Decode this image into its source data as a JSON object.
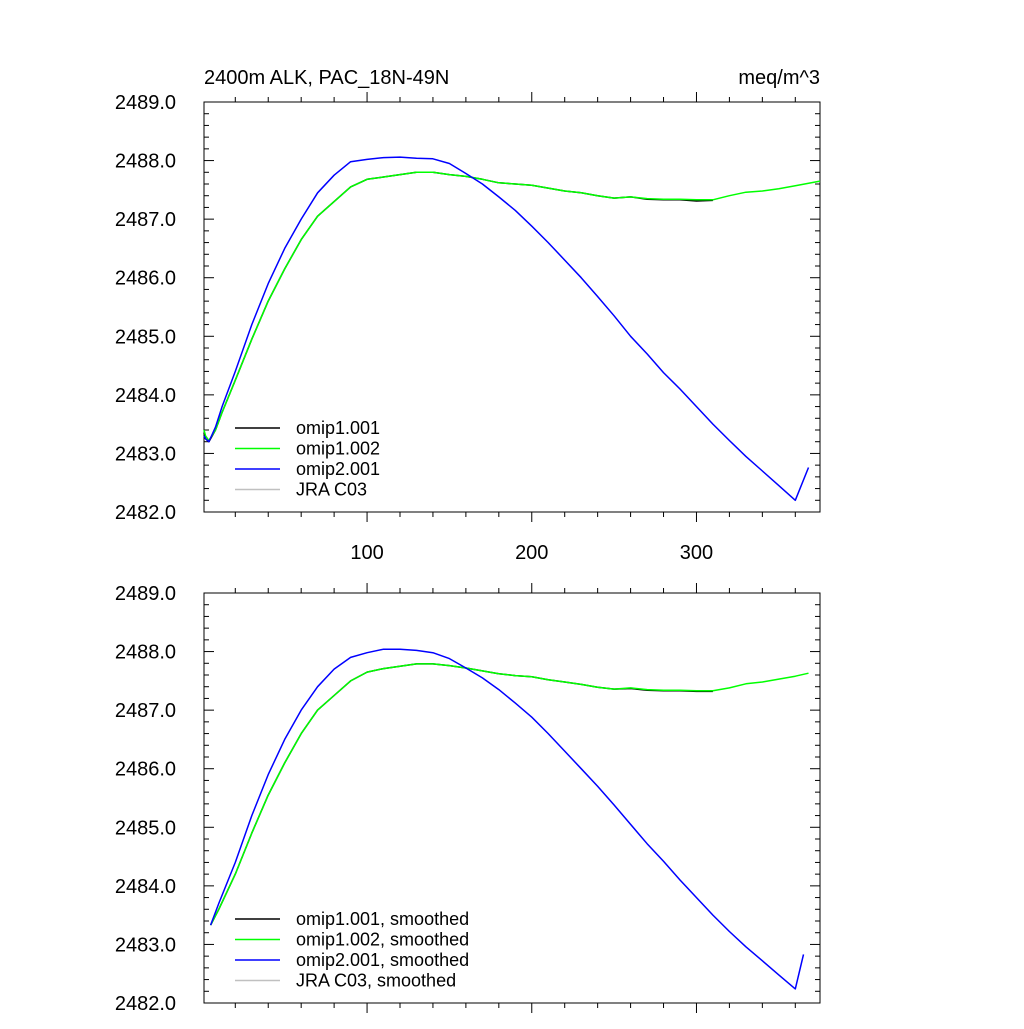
{
  "chart_data": [
    {
      "type": "line",
      "title": "2400m ALK, PAC_18N-49N",
      "units": "meq/m^3",
      "xlim": [
        1,
        375
      ],
      "ylim": [
        2482.0,
        2489.0
      ],
      "xticks": [
        100,
        200,
        300
      ],
      "xtick_labels": [
        "100",
        "200",
        "300"
      ],
      "yticks": [
        2482.0,
        2483.0,
        2484.0,
        2485.0,
        2486.0,
        2487.0,
        2488.0,
        2489.0
      ],
      "ytick_labels": [
        "2482.0",
        "2483.0",
        "2484.0",
        "2485.0",
        "2486.0",
        "2487.0",
        "2488.0",
        "2489.0"
      ],
      "legend_position": "bottom-left",
      "series": [
        {
          "name": "omip1.001",
          "color": "#000000",
          "x": [
            1,
            2,
            4,
            8,
            12,
            20,
            30,
            40,
            50,
            60,
            70,
            80,
            90,
            100,
            110,
            120,
            130,
            140,
            150,
            160,
            170,
            180,
            190,
            200,
            210,
            220,
            230,
            240,
            250,
            260,
            270,
            280,
            290,
            300,
            310
          ],
          "y": [
            2483.35,
            2483.25,
            2483.2,
            2483.4,
            2483.7,
            2484.25,
            2484.95,
            2485.6,
            2486.15,
            2486.65,
            2487.05,
            2487.3,
            2487.55,
            2487.68,
            2487.72,
            2487.76,
            2487.8,
            2487.8,
            2487.76,
            2487.73,
            2487.68,
            2487.62,
            2487.6,
            2487.58,
            2487.53,
            2487.48,
            2487.45,
            2487.4,
            2487.36,
            2487.38,
            2487.34,
            2487.33,
            2487.33,
            2487.31,
            2487.32
          ]
        },
        {
          "name": "omip1.002",
          "color": "#00ff00",
          "x": [
            1,
            2,
            4,
            8,
            12,
            20,
            30,
            40,
            50,
            60,
            70,
            80,
            90,
            100,
            110,
            120,
            130,
            140,
            150,
            160,
            170,
            180,
            190,
            200,
            210,
            220,
            230,
            240,
            250,
            260,
            270,
            280,
            290,
            300,
            310,
            320,
            330,
            340,
            350,
            360,
            375
          ],
          "y": [
            2483.4,
            2483.3,
            2483.22,
            2483.4,
            2483.7,
            2484.25,
            2484.95,
            2485.6,
            2486.15,
            2486.65,
            2487.05,
            2487.3,
            2487.55,
            2487.68,
            2487.72,
            2487.76,
            2487.8,
            2487.8,
            2487.76,
            2487.73,
            2487.68,
            2487.62,
            2487.6,
            2487.58,
            2487.53,
            2487.48,
            2487.45,
            2487.4,
            2487.36,
            2487.38,
            2487.35,
            2487.34,
            2487.34,
            2487.33,
            2487.33,
            2487.4,
            2487.46,
            2487.48,
            2487.52,
            2487.57,
            2487.65
          ]
        },
        {
          "name": "omip2.001",
          "color": "#0000ff",
          "x": [
            1,
            2,
            4,
            8,
            12,
            20,
            30,
            40,
            50,
            60,
            70,
            80,
            90,
            100,
            110,
            120,
            130,
            140,
            150,
            160,
            170,
            180,
            190,
            200,
            210,
            220,
            230,
            240,
            250,
            260,
            270,
            280,
            290,
            300,
            310,
            320,
            330,
            340,
            350,
            360,
            368
          ],
          "y": [
            2483.3,
            2483.25,
            2483.2,
            2483.45,
            2483.8,
            2484.4,
            2485.2,
            2485.9,
            2486.5,
            2487.0,
            2487.45,
            2487.75,
            2487.98,
            2488.02,
            2488.05,
            2488.06,
            2488.04,
            2488.03,
            2487.95,
            2487.78,
            2487.6,
            2487.38,
            2487.15,
            2486.88,
            2486.6,
            2486.3,
            2486.0,
            2485.68,
            2485.35,
            2485.0,
            2484.7,
            2484.38,
            2484.1,
            2483.8,
            2483.5,
            2483.22,
            2482.95,
            2482.7,
            2482.45,
            2482.2,
            2482.76
          ]
        },
        {
          "name": "JRA C03",
          "color": "#c0c0c0",
          "x": [],
          "y": []
        }
      ]
    },
    {
      "type": "line",
      "title": "",
      "units": "",
      "xlim": [
        1,
        375
      ],
      "ylim": [
        2482.0,
        2489.0
      ],
      "xticks": [
        100,
        200,
        300
      ],
      "xtick_labels": [],
      "yticks": [
        2482.0,
        2483.0,
        2484.0,
        2485.0,
        2486.0,
        2487.0,
        2488.0,
        2489.0
      ],
      "ytick_labels": [
        "2482.0",
        "2483.0",
        "2484.0",
        "2485.0",
        "2486.0",
        "2487.0",
        "2488.0",
        "2489.0"
      ],
      "legend_position": "bottom-left",
      "series": [
        {
          "name": "omip1.001, smoothed",
          "color": "#000000",
          "x": [
            5,
            10,
            20,
            30,
            40,
            50,
            60,
            70,
            80,
            90,
            100,
            110,
            120,
            130,
            140,
            150,
            160,
            170,
            180,
            190,
            200,
            210,
            220,
            230,
            240,
            250,
            260,
            270,
            280,
            290,
            300,
            310
          ],
          "y": [
            2483.33,
            2483.6,
            2484.2,
            2484.9,
            2485.55,
            2486.1,
            2486.6,
            2487.0,
            2487.25,
            2487.5,
            2487.65,
            2487.71,
            2487.75,
            2487.79,
            2487.79,
            2487.76,
            2487.72,
            2487.67,
            2487.62,
            2487.59,
            2487.57,
            2487.52,
            2487.48,
            2487.44,
            2487.39,
            2487.36,
            2487.37,
            2487.34,
            2487.33,
            2487.33,
            2487.32,
            2487.32
          ]
        },
        {
          "name": "omip1.002, smoothed",
          "color": "#00ff00",
          "x": [
            5,
            10,
            20,
            30,
            40,
            50,
            60,
            70,
            80,
            90,
            100,
            110,
            120,
            130,
            140,
            150,
            160,
            170,
            180,
            190,
            200,
            210,
            220,
            230,
            240,
            250,
            260,
            270,
            280,
            290,
            300,
            310,
            320,
            330,
            340,
            350,
            360,
            368
          ],
          "y": [
            2483.33,
            2483.6,
            2484.2,
            2484.9,
            2485.55,
            2486.1,
            2486.6,
            2487.0,
            2487.25,
            2487.5,
            2487.65,
            2487.71,
            2487.75,
            2487.79,
            2487.79,
            2487.76,
            2487.72,
            2487.67,
            2487.62,
            2487.59,
            2487.57,
            2487.52,
            2487.48,
            2487.44,
            2487.39,
            2487.36,
            2487.38,
            2487.35,
            2487.34,
            2487.34,
            2487.33,
            2487.33,
            2487.38,
            2487.45,
            2487.48,
            2487.53,
            2487.58,
            2487.63
          ]
        },
        {
          "name": "omip2.001, smoothed",
          "color": "#0000ff",
          "x": [
            5,
            10,
            20,
            30,
            40,
            50,
            60,
            70,
            80,
            90,
            100,
            110,
            120,
            130,
            140,
            150,
            160,
            170,
            180,
            190,
            200,
            210,
            220,
            230,
            240,
            250,
            260,
            270,
            280,
            290,
            300,
            310,
            320,
            330,
            340,
            350,
            360,
            365
          ],
          "y": [
            2483.33,
            2483.7,
            2484.4,
            2485.2,
            2485.9,
            2486.5,
            2487.0,
            2487.4,
            2487.7,
            2487.9,
            2487.98,
            2488.04,
            2488.04,
            2488.02,
            2487.98,
            2487.88,
            2487.72,
            2487.55,
            2487.35,
            2487.12,
            2486.88,
            2486.6,
            2486.3,
            2486.0,
            2485.7,
            2485.38,
            2485.05,
            2484.72,
            2484.42,
            2484.1,
            2483.8,
            2483.5,
            2483.22,
            2482.96,
            2482.72,
            2482.48,
            2482.24,
            2482.83
          ]
        },
        {
          "name": "JRA C03, smoothed",
          "color": "#c0c0c0",
          "x": [],
          "y": []
        }
      ]
    }
  ]
}
